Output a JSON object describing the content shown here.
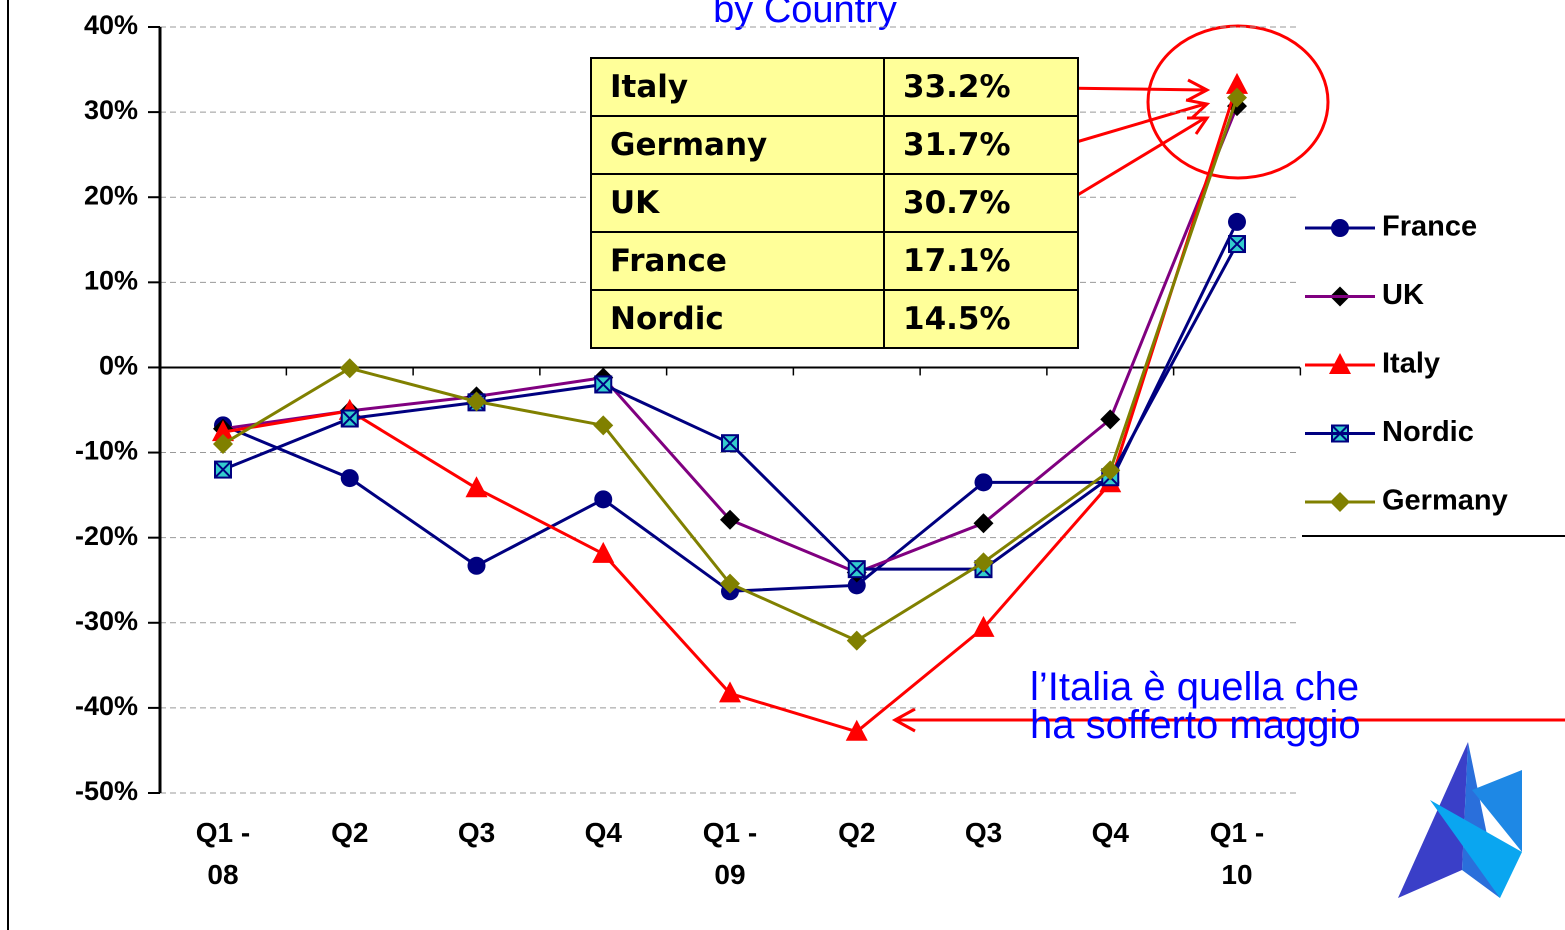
{
  "chart_data": {
    "type": "line",
    "title": "by Country",
    "categories": [
      "Q1 - 08",
      "Q2",
      "Q3",
      "Q4",
      "Q1 - 09",
      "Q2",
      "Q3",
      "Q4",
      "Q1 - 10"
    ],
    "series": [
      {
        "name": "France",
        "color": "#000080",
        "marker": "circle",
        "marker_color": "#000080",
        "values": [
          -6.8,
          -13.0,
          -23.3,
          -15.5,
          -26.3,
          -25.6,
          -13.5,
          -13.5,
          17.1
        ]
      },
      {
        "name": "UK",
        "color": "#800080",
        "marker": "diamond",
        "marker_color": "#000000",
        "values": [
          -7.2,
          -5.1,
          -3.4,
          -1.2,
          -17.9,
          -24.1,
          -18.3,
          -6.1,
          30.7
        ]
      },
      {
        "name": "Italy",
        "color": "#ff0000",
        "marker": "triangle",
        "marker_color": "#ff0000",
        "values": [
          -7.6,
          -5.1,
          -14.2,
          -21.9,
          -38.3,
          -42.8,
          -30.6,
          -13.6,
          33.2
        ]
      },
      {
        "name": "Nordic",
        "color": "#000080",
        "marker": "square",
        "marker_color": "#33cccc",
        "values": [
          -12.0,
          -6.0,
          -4.1,
          -2.0,
          -8.9,
          -23.7,
          -23.7,
          -12.9,
          14.5
        ]
      },
      {
        "name": "Germany",
        "color": "#808000",
        "marker": "diamond",
        "marker_color": "#808000",
        "values": [
          -9.0,
          -0.1,
          -4.0,
          -6.8,
          -25.4,
          -32.1,
          -22.9,
          -12.1,
          31.7
        ]
      }
    ],
    "ylim": [
      -50,
      40
    ],
    "yticks": [
      {
        "value": -50,
        "label": "-50%"
      },
      {
        "value": -40,
        "label": "-40%"
      },
      {
        "value": -30,
        "label": "-30%"
      },
      {
        "value": -20,
        "label": "-20%"
      },
      {
        "value": -10,
        "label": "-10%"
      },
      {
        "value": 0,
        "label": "0%"
      },
      {
        "value": 10,
        "label": "10%"
      },
      {
        "value": 20,
        "label": "20%"
      },
      {
        "value": 30,
        "label": "30%"
      },
      {
        "value": 40,
        "label": "40%"
      }
    ],
    "grid": true,
    "legend": "right",
    "table": [
      [
        "Italy",
        "33.2%"
      ],
      [
        "Germany",
        "31.7%"
      ],
      [
        "UK",
        "30.7%"
      ],
      [
        "France",
        "17.1%"
      ],
      [
        "Nordic",
        "14.5%"
      ]
    ],
    "annotation": [
      "l’Italia è quella che",
      "ha sofferto maggio"
    ]
  }
}
